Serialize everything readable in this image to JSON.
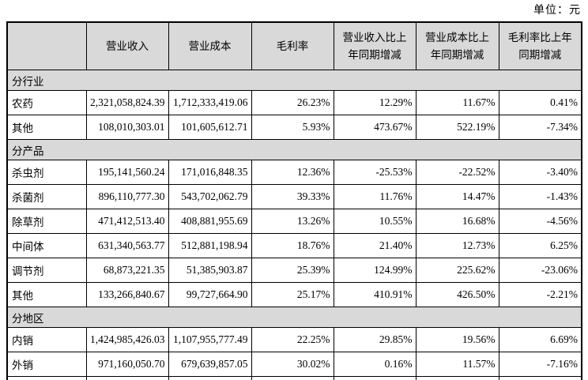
{
  "unit_label": "单位：元",
  "colors": {
    "header_bg": "#d9d9d9",
    "border": "#000000",
    "text": "#000000",
    "page_bg": "#ffffff"
  },
  "table": {
    "headers": [
      "",
      "营业收入",
      "营业成本",
      "毛利率",
      "营业收入比上年同期增减",
      "营业成本比上年同期增减",
      "毛利率比上年同期增减"
    ],
    "sections": [
      {
        "label": "分行业",
        "rows": [
          {
            "label": "农药",
            "values": [
              "2,321,058,824.39",
              "1,712,333,419.06",
              "26.23%",
              "12.29%",
              "11.67%",
              "0.41%"
            ]
          },
          {
            "label": "其他",
            "values": [
              "108,010,303.01",
              "101,605,612.71",
              "5.93%",
              "473.67%",
              "522.19%",
              "-7.34%"
            ]
          }
        ]
      },
      {
        "label": "分产品",
        "rows": [
          {
            "label": "杀虫剂",
            "values": [
              "195,141,560.24",
              "171,016,848.35",
              "12.36%",
              "-25.53%",
              "-22.52%",
              "-3.40%"
            ]
          },
          {
            "label": "杀菌剂",
            "values": [
              "896,110,777.30",
              "543,702,062.79",
              "39.33%",
              "11.76%",
              "14.47%",
              "-1.43%"
            ]
          },
          {
            "label": "除草剂",
            "values": [
              "471,412,513.40",
              "408,881,955.69",
              "13.26%",
              "10.55%",
              "16.68%",
              "-4.56%"
            ]
          },
          {
            "label": "中间体",
            "values": [
              "631,340,563.77",
              "512,881,198.94",
              "18.76%",
              "21.40%",
              "12.73%",
              "6.25%"
            ]
          },
          {
            "label": "调节剂",
            "values": [
              "68,873,221.35",
              "51,385,903.87",
              "25.39%",
              "124.99%",
              "225.62%",
              "-23.06%"
            ]
          },
          {
            "label": "其他",
            "values": [
              "133,266,840.67",
              "99,727,664.90",
              "25.17%",
              "410.91%",
              "426.50%",
              "-2.21%"
            ]
          }
        ]
      },
      {
        "label": "分地区",
        "rows": [
          {
            "label": "内销",
            "values": [
              "1,424,985,426.03",
              "1,107,955,777.49",
              "22.25%",
              "29.85%",
              "19.56%",
              "6.69%"
            ]
          },
          {
            "label": "外销",
            "values": [
              "971,160,050.70",
              "679,639,857.05",
              "30.02%",
              "0.16%",
              "11.57%",
              "-7.16%"
            ]
          }
        ]
      }
    ]
  }
}
